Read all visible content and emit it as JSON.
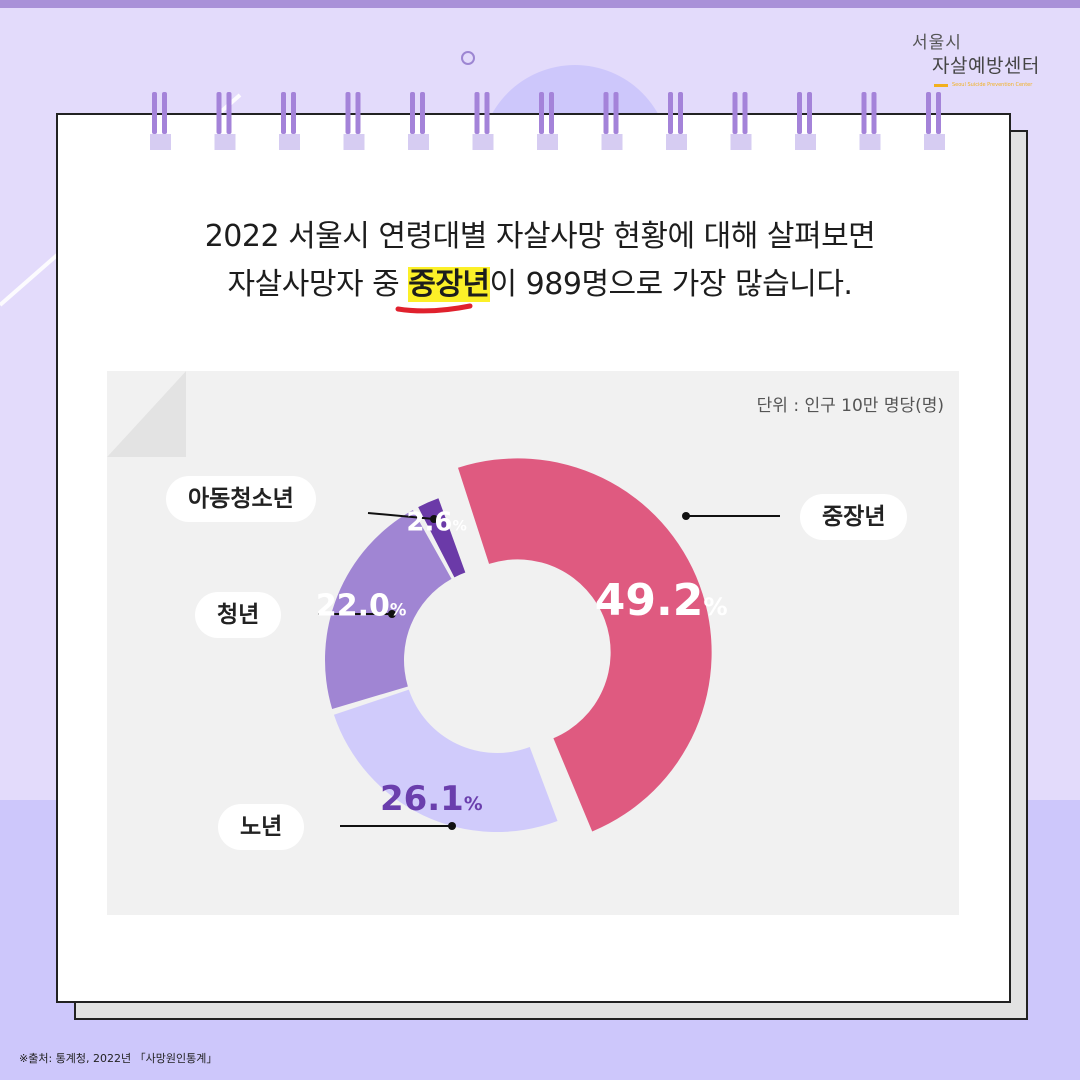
{
  "header": {
    "logo_line1": "서울시",
    "logo_line2": "자살예방센터",
    "logo_english": "Seoul Suicide Prevention Center"
  },
  "headline": {
    "line1": "2022 서울시 연령대별 자살사망 현황에 대해 살펴보면",
    "line2_before": "자살사망자 중 ",
    "line2_highlight": "중장년",
    "line2_after": "이 989명으로 가장 많습니다."
  },
  "unit_label": "단위 : 인구 10만 명당(명)",
  "source": "※출처: 통계청, 2022년 「사망원인통계」",
  "colors": {
    "background": "#e3dbfb",
    "highlight": "#fcf028",
    "underline": "#e0212d",
    "ring": "#a483d9"
  },
  "chart_data": {
    "type": "pie",
    "donut": true,
    "value_suffix": "%",
    "series": [
      {
        "name": "중장년",
        "value": 49.2,
        "color": "#df5a80",
        "label_color": "#ffffff",
        "exploded": true
      },
      {
        "name": "노년",
        "value": 26.1,
        "color": "#d0cbfb",
        "label_color": "#6a3ead",
        "exploded": false
      },
      {
        "name": "청년",
        "value": 22.0,
        "color": "#a085d3",
        "label_color": "#ffffff",
        "exploded": false
      },
      {
        "name": "아동청소년",
        "value": 2.6,
        "color": "#6b3aa8",
        "label_color": "#ffffff",
        "exploded": false
      }
    ]
  }
}
